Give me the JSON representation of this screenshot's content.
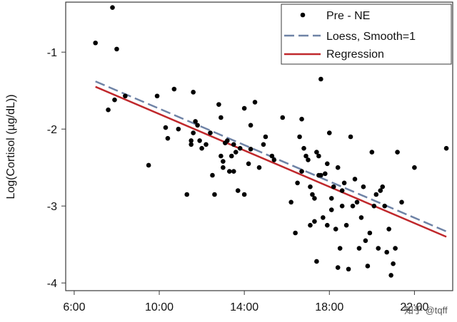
{
  "chart_data": {
    "type": "scatter",
    "title": "",
    "xlabel": "",
    "ylabel": "Log(Cortisol (µg/dL))",
    "x_tick_labels": [
      "6:00",
      "10:00",
      "14:00",
      "18:00",
      "22:00"
    ],
    "x_ticks_hours": [
      6,
      10,
      14,
      18,
      22
    ],
    "y_ticks": [
      -1,
      -2,
      -3,
      -4
    ],
    "xlim_hours": [
      5.6,
      23.8
    ],
    "ylim": [
      -4.1,
      -0.35
    ],
    "grid": false,
    "legend_position": "top-right",
    "legend": [
      {
        "label": "Pre - NE",
        "kind": "marker"
      },
      {
        "label": "Loess, Smooth=1",
        "kind": "dashed-line"
      },
      {
        "label": "Regression",
        "kind": "solid-line"
      }
    ],
    "colors": {
      "points": "#000000",
      "loess": "#6f83a6",
      "regression": "#c0282c"
    },
    "regression": {
      "x_hours": [
        7.0,
        23.5
      ],
      "y": [
        -1.45,
        -3.4
      ]
    },
    "loess": {
      "x_hours": [
        7.0,
        23.5
      ],
      "y": [
        -1.38,
        -3.33
      ]
    },
    "series": [
      {
        "name": "Pre - NE",
        "x_hours": [
          7.8,
          7.0,
          8.0,
          7.6,
          7.9,
          8.4,
          9.5,
          9.9,
          10.3,
          10.4,
          10.7,
          10.9,
          11.3,
          11.5,
          11.6,
          11.7,
          11.6,
          11.8,
          11.5,
          11.9,
          12.0,
          12.2,
          12.4,
          12.5,
          12.6,
          12.8,
          12.9,
          13.0,
          12.9,
          13.1,
          13.0,
          13.3,
          13.2,
          13.4,
          13.5,
          13.6,
          13.5,
          13.7,
          13.8,
          14.0,
          14.0,
          14.2,
          14.3,
          14.3,
          14.5,
          14.7,
          14.9,
          15.0,
          15.3,
          15.4,
          15.8,
          16.2,
          16.4,
          16.5,
          16.6,
          16.7,
          16.7,
          16.8,
          16.9,
          17.0,
          17.1,
          17.1,
          17.2,
          17.3,
          17.3,
          17.4,
          17.4,
          17.5,
          17.5,
          17.6,
          17.6,
          17.7,
          17.8,
          17.9,
          17.9,
          18.0,
          18.1,
          18.1,
          18.2,
          18.3,
          18.4,
          18.4,
          18.5,
          18.6,
          18.6,
          18.7,
          18.8,
          18.9,
          19.0,
          19.1,
          19.2,
          19.3,
          19.4,
          19.5,
          19.6,
          19.7,
          19.8,
          19.9,
          20.0,
          20.1,
          20.2,
          20.3,
          20.4,
          20.5,
          20.6,
          20.7,
          20.8,
          20.9,
          21.0,
          21.1,
          21.2,
          21.4,
          22.0,
          23.5
        ],
        "y": [
          -0.42,
          -0.88,
          -0.96,
          -1.75,
          -1.62,
          -1.57,
          -2.47,
          -1.57,
          -1.98,
          -2.12,
          -1.48,
          -2.0,
          -2.85,
          -2.15,
          -1.52,
          -1.9,
          -2.05,
          -1.95,
          -2.2,
          -2.15,
          -2.25,
          -2.2,
          -2.05,
          -2.6,
          -2.85,
          -1.68,
          -2.35,
          -2.5,
          -1.85,
          -2.18,
          -2.42,
          -2.55,
          -2.15,
          -2.35,
          -2.2,
          -2.3,
          -2.55,
          -2.8,
          -2.25,
          -1.73,
          -2.85,
          -2.45,
          -2.26,
          -1.95,
          -1.65,
          -2.5,
          -2.2,
          -2.1,
          -2.35,
          -2.4,
          -1.85,
          -2.95,
          -3.35,
          -2.7,
          -2.1,
          -1.87,
          -2.55,
          -2.25,
          -2.35,
          -2.4,
          -2.75,
          -3.25,
          -2.85,
          -2.9,
          -3.2,
          -2.3,
          -3.72,
          -2.6,
          -2.35,
          -1.35,
          -2.6,
          -3.15,
          -2.58,
          -2.45,
          -3.25,
          -2.05,
          -2.9,
          -3.05,
          -2.75,
          -3.3,
          -2.5,
          -3.8,
          -3.55,
          -3.0,
          -2.8,
          -2.7,
          -3.25,
          -3.82,
          -2.1,
          -3.0,
          -2.65,
          -2.95,
          -3.55,
          -3.15,
          -2.75,
          -3.45,
          -3.78,
          -3.35,
          -2.3,
          -3.0,
          -2.85,
          -3.55,
          -2.8,
          -2.75,
          -3.0,
          -3.6,
          -3.3,
          -3.9,
          -3.75,
          -3.55,
          -2.3,
          -2.95,
          -2.5,
          -2.25
        ]
      }
    ]
  },
  "watermark": "知乎 @tqff"
}
